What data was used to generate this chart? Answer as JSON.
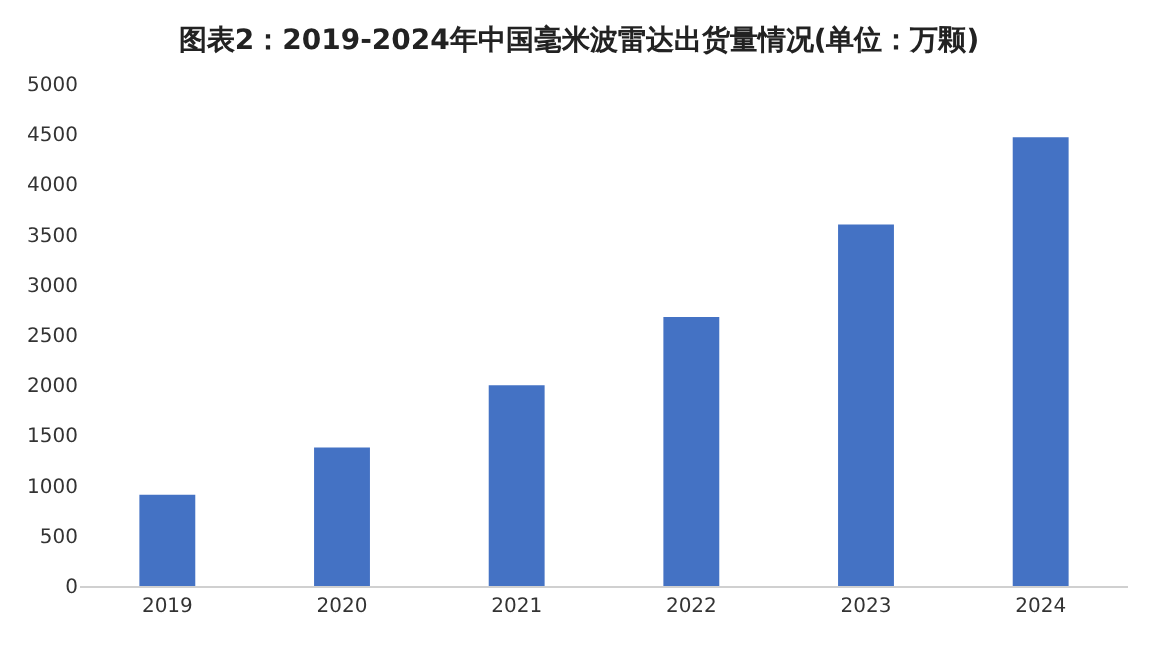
{
  "chart_data": {
    "type": "bar",
    "title": "图表2：2019-2024年中国毫米波雷达出货量情况(单位：万颗)",
    "categories": [
      "2019",
      "2020",
      "2021",
      "2022",
      "2023",
      "2024"
    ],
    "values": [
      910,
      1380,
      2000,
      2680,
      3600,
      4470
    ],
    "color": "#4472c4",
    "ylim": [
      0,
      5000
    ],
    "yticks": [
      0,
      500,
      1000,
      1500,
      2000,
      2500,
      3000,
      3500,
      4000,
      4500,
      5000
    ],
    "grid": false
  }
}
